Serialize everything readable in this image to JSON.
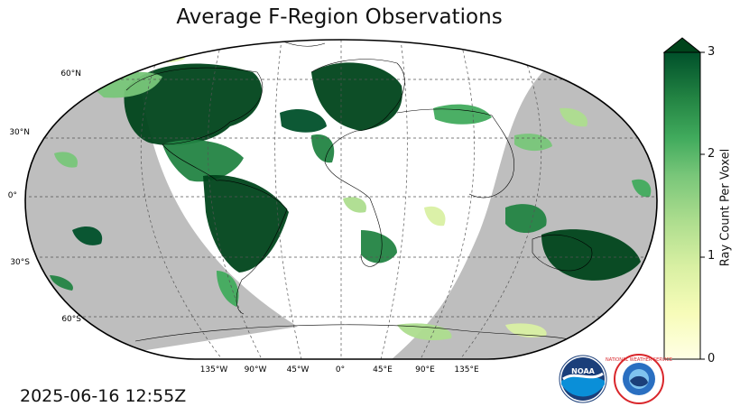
{
  "title": "Average F-Region Observations",
  "timestamp": "2025-06-16 12:55Z",
  "latitude_labels": [
    "60°N",
    "30°N",
    "0°",
    "30°S",
    "60°S"
  ],
  "longitude_labels": [
    "135°W",
    "90°W",
    "45°W",
    "0°",
    "45°E",
    "90°E",
    "135°E"
  ],
  "colorbar": {
    "label": "Ray Count Per Voxel",
    "ticks": [
      "0",
      "1",
      "2",
      "3"
    ],
    "min": 0,
    "max": 3,
    "extend": "max",
    "colors": [
      "#ffffcc",
      "#d9f0a3",
      "#addd8e",
      "#78c679",
      "#41ab5d",
      "#238443",
      "#005a32",
      "#00441b"
    ]
  },
  "night_shading_color": "#bebebe",
  "logos": {
    "noaa": "NOAA",
    "nws": "NATIONAL WEATHER SERVICE"
  }
}
